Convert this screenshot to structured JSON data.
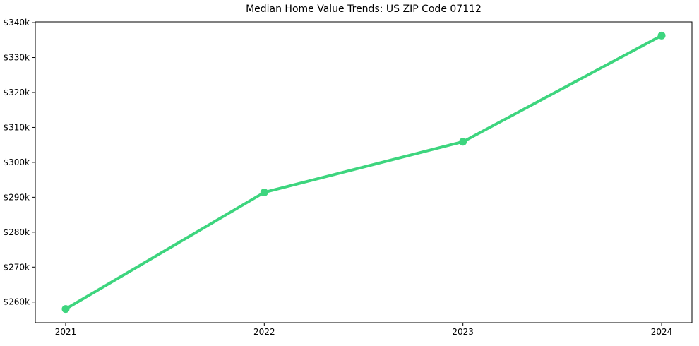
{
  "chart_data": {
    "type": "line",
    "title": "Median Home Value Trends: US ZIP Code 07112",
    "categories": [
      "2021",
      "2022",
      "2023",
      "2024"
    ],
    "values": [
      258000,
      291400,
      305900,
      336300
    ],
    "xlabel": "",
    "ylabel": "",
    "ylim": [
      254085,
      340215
    ],
    "y_ticks": {
      "values": [
        260000,
        270000,
        280000,
        290000,
        300000,
        310000,
        320000,
        330000,
        340000
      ],
      "labels": [
        "$260k",
        "$270k",
        "$280k",
        "$290k",
        "$300k",
        "$310k",
        "$320k",
        "$330k",
        "$340k"
      ]
    },
    "grid": false,
    "legend": "none",
    "marker": "circle",
    "colors": {
      "line": "#3dd57e",
      "axis": "#000000",
      "text": "#000000",
      "background": "#ffffff"
    }
  }
}
